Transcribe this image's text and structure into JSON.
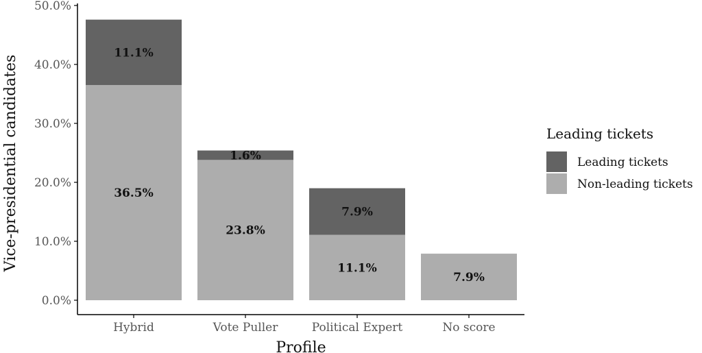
{
  "chart_data": {
    "type": "bar",
    "stacked": true,
    "categories": [
      "Hybrid",
      "Vote Puller",
      "Political Expert",
      "No score"
    ],
    "series": [
      {
        "name": "Non-leading tickets",
        "values": [
          36.5,
          23.8,
          11.1,
          7.9
        ],
        "labels": [
          "36.5%",
          "23.8%",
          "11.1%",
          "7.9%"
        ],
        "color": "#adadad"
      },
      {
        "name": "Leading tickets",
        "values": [
          11.1,
          1.6,
          7.9,
          0
        ],
        "labels": [
          "11.1%",
          "1.6%",
          "7.9%",
          ""
        ],
        "color": "#636363"
      }
    ],
    "xlabel": "Profile",
    "ylabel": "Vice-presidential candidates",
    "ylim": [
      0,
      50
    ],
    "yticks": [
      0,
      10,
      20,
      30,
      40,
      50
    ],
    "ytick_labels": [
      "0.0%",
      "10.0%",
      "20.0%",
      "30.0%",
      "40.0%",
      "50.0%"
    ],
    "grid": false,
    "legend": {
      "title": "Leading tickets",
      "position": "right",
      "entries": [
        "Leading tickets",
        "Non-leading tickets"
      ]
    }
  }
}
